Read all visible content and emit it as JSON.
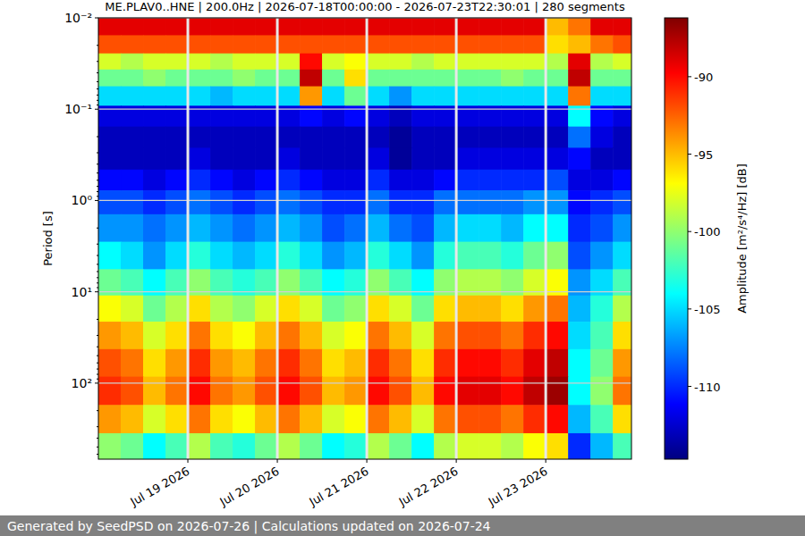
{
  "chart_data": {
    "type": "heatmap",
    "title": "ME.PLAV0..HNE | 200.0Hz | 2026-07-18T00:00:00 - 2026-07-23T22:30:01 | 280 segments",
    "y_label": "Period [s]",
    "log": "y",
    "grid": true,
    "xlim": [
      "2026-07-18T00:00:00",
      "2026-07-23T23:00:00"
    ],
    "ylim": [
      0.01,
      680
    ],
    "xticks": [
      {
        "value": "2026-07-19T00:00:00",
        "label": "Jul 19 2026"
      },
      {
        "value": "2026-07-20T00:00:00",
        "label": "Jul 20 2026"
      },
      {
        "value": "2026-07-21T00:00:00",
        "label": "Jul 21 2026"
      },
      {
        "value": "2026-07-22T00:00:00",
        "label": "Jul 22 2026"
      },
      {
        "value": "2026-07-23T00:00:00",
        "label": "Jul 23 2026"
      }
    ],
    "yticks": [
      {
        "value": 0.01,
        "label": "10⁻²"
      },
      {
        "value": 0.1,
        "label": "10⁻¹"
      },
      {
        "value": 1,
        "label": "10⁰"
      },
      {
        "value": 10,
        "label": "10¹"
      },
      {
        "value": 100,
        "label": "10²"
      }
    ],
    "x": [
      "2026-07-18T03:00:00",
      "2026-07-18T09:00:00",
      "2026-07-18T15:00:00",
      "2026-07-18T21:00:00",
      "2026-07-19T03:00:00",
      "2026-07-19T09:00:00",
      "2026-07-19T15:00:00",
      "2026-07-19T21:00:00",
      "2026-07-20T03:00:00",
      "2026-07-20T09:00:00",
      "2026-07-20T15:00:00",
      "2026-07-20T21:00:00",
      "2026-07-21T03:00:00",
      "2026-07-21T09:00:00",
      "2026-07-21T15:00:00",
      "2026-07-21T21:00:00",
      "2026-07-22T03:00:00",
      "2026-07-22T09:00:00",
      "2026-07-22T15:00:00",
      "2026-07-22T21:00:00",
      "2026-07-23T03:00:00",
      "2026-07-23T09:00:00",
      "2026-07-23T15:00:00",
      "2026-07-23T21:00:00"
    ],
    "y": [
      0.012,
      0.02,
      0.03,
      0.045,
      0.07,
      0.12,
      0.2,
      0.35,
      0.6,
      1,
      2,
      4,
      8,
      15,
      30,
      60,
      120,
      250,
      500
    ],
    "values": [
      [
        -89,
        -89,
        -89,
        -89,
        -89,
        -89,
        -89,
        -89,
        -89,
        -89,
        -89,
        -89,
        -89,
        -89,
        -89,
        -89,
        -89,
        -89,
        -89,
        -89,
        -95,
        -93,
        -89,
        -89
      ],
      [
        -92,
        -92,
        -92,
        -92,
        -92,
        -92,
        -92,
        -92,
        -92,
        -92,
        -92,
        -92,
        -92,
        -92,
        -92,
        -92,
        -92,
        -92,
        -92,
        -92,
        -96,
        -95,
        -93,
        -92
      ],
      [
        -98,
        -99,
        -98,
        -98,
        -98,
        -99,
        -98,
        -98,
        -98,
        -90,
        -98,
        -97,
        -98,
        -98,
        -99,
        -98,
        -98,
        -98,
        -98,
        -98,
        -99,
        -89,
        -99,
        -98
      ],
      [
        -101,
        -101,
        -100,
        -101,
        -101,
        -101,
        -100,
        -101,
        -101,
        -88,
        -101,
        -96,
        -101,
        -101,
        -101,
        -101,
        -101,
        -101,
        -100,
        -101,
        -101,
        -88,
        -101,
        -101
      ],
      [
        -105,
        -105,
        -105,
        -105,
        -105,
        -106,
        -105,
        -105,
        -105,
        -94,
        -105,
        -101,
        -105,
        -107,
        -105,
        -105,
        -105,
        -105,
        -105,
        -105,
        -105,
        -93,
        -105,
        -105
      ],
      [
        -112,
        -112,
        -112,
        -112,
        -112,
        -112,
        -112,
        -112,
        -112,
        -111,
        -112,
        -111,
        -112,
        -113,
        -112,
        -112,
        -112,
        -112,
        -112,
        -112,
        -112,
        -104,
        -111,
        -112
      ],
      [
        -113,
        -113,
        -113,
        -113,
        -113,
        -113,
        -113,
        -113,
        -113,
        -113,
        -113,
        -113,
        -113,
        -114,
        -113,
        -113,
        -113,
        -113,
        -113,
        -113,
        -113,
        -108,
        -112,
        -113
      ],
      [
        -113,
        -113,
        -113,
        -113,
        -112,
        -113,
        -113,
        -113,
        -112,
        -113,
        -113,
        -113,
        -112,
        -114,
        -113,
        -113,
        -112,
        -112,
        -112,
        -112,
        -112,
        -111,
        -113,
        -113
      ],
      [
        -111,
        -111,
        -112,
        -111,
        -110,
        -111,
        -112,
        -111,
        -110,
        -111,
        -112,
        -112,
        -110,
        -112,
        -112,
        -111,
        -110,
        -110,
        -110,
        -110,
        -109,
        -112,
        -112,
        -111
      ],
      [
        -109,
        -109,
        -110,
        -109,
        -108,
        -109,
        -110,
        -109,
        -108,
        -109,
        -110,
        -110,
        -108,
        -110,
        -110,
        -108,
        -108,
        -108,
        -108,
        -107,
        -107,
        -111,
        -110,
        -109
      ],
      [
        -107,
        -107,
        -108,
        -107,
        -106,
        -107,
        -108,
        -107,
        -106,
        -107,
        -109,
        -108,
        -106,
        -108,
        -109,
        -106,
        -105,
        -105,
        -106,
        -104,
        -104,
        -110,
        -109,
        -107
      ],
      [
        -104,
        -105,
        -107,
        -105,
        -103,
        -105,
        -106,
        -105,
        -103,
        -105,
        -107,
        -106,
        -103,
        -105,
        -107,
        -103,
        -102,
        -102,
        -103,
        -101,
        -100,
        -109,
        -107,
        -105
      ],
      [
        -101,
        -102,
        -104,
        -102,
        -100,
        -102,
        -103,
        -102,
        -100,
        -102,
        -104,
        -103,
        -100,
        -102,
        -104,
        -100,
        -99,
        -99,
        -100,
        -98,
        -97,
        -107,
        -105,
        -102
      ],
      [
        -97,
        -98,
        -101,
        -99,
        -96,
        -99,
        -100,
        -98,
        -96,
        -98,
        -101,
        -100,
        -96,
        -98,
        -101,
        -96,
        -95,
        -95,
        -96,
        -94,
        -93,
        -106,
        -103,
        -99
      ],
      [
        -94,
        -95,
        -98,
        -96,
        -93,
        -96,
        -97,
        -95,
        -93,
        -95,
        -98,
        -97,
        -93,
        -95,
        -98,
        -93,
        -92,
        -92,
        -93,
        -91,
        -90,
        -105,
        -102,
        -96
      ],
      [
        -92,
        -93,
        -96,
        -94,
        -91,
        -94,
        -95,
        -93,
        -91,
        -93,
        -96,
        -95,
        -91,
        -93,
        -96,
        -91,
        -90,
        -90,
        -91,
        -89,
        -88,
        -104,
        -101,
        -94
      ],
      [
        -91,
        -92,
        -95,
        -93,
        -90,
        -93,
        -94,
        -92,
        -90,
        -92,
        -95,
        -94,
        -90,
        -92,
        -95,
        -90,
        -89,
        -89,
        -90,
        -88,
        -87,
        -104,
        -100,
        -93
      ],
      [
        -94,
        -95,
        -98,
        -96,
        -93,
        -96,
        -97,
        -95,
        -93,
        -95,
        -98,
        -97,
        -93,
        -95,
        -98,
        -93,
        -92,
        -92,
        -93,
        -91,
        -90,
        -106,
        -102,
        -96
      ],
      [
        -100,
        -101,
        -104,
        -102,
        -99,
        -102,
        -103,
        -101,
        -99,
        -101,
        -104,
        -103,
        -99,
        -101,
        -104,
        -99,
        -98,
        -98,
        -99,
        -97,
        -96,
        -110,
        -106,
        -102
      ]
    ],
    "colorbar": {
      "label": "Amplitude [m²/s⁴/Hz] [dB]",
      "range": [
        -114.7,
        -86.2
      ],
      "ticks": [
        -90,
        -95,
        -100,
        -105,
        -110
      ]
    }
  },
  "footer": "Generated by SeedPSD on 2026-07-26 | Calculations updated on 2026-07-24"
}
